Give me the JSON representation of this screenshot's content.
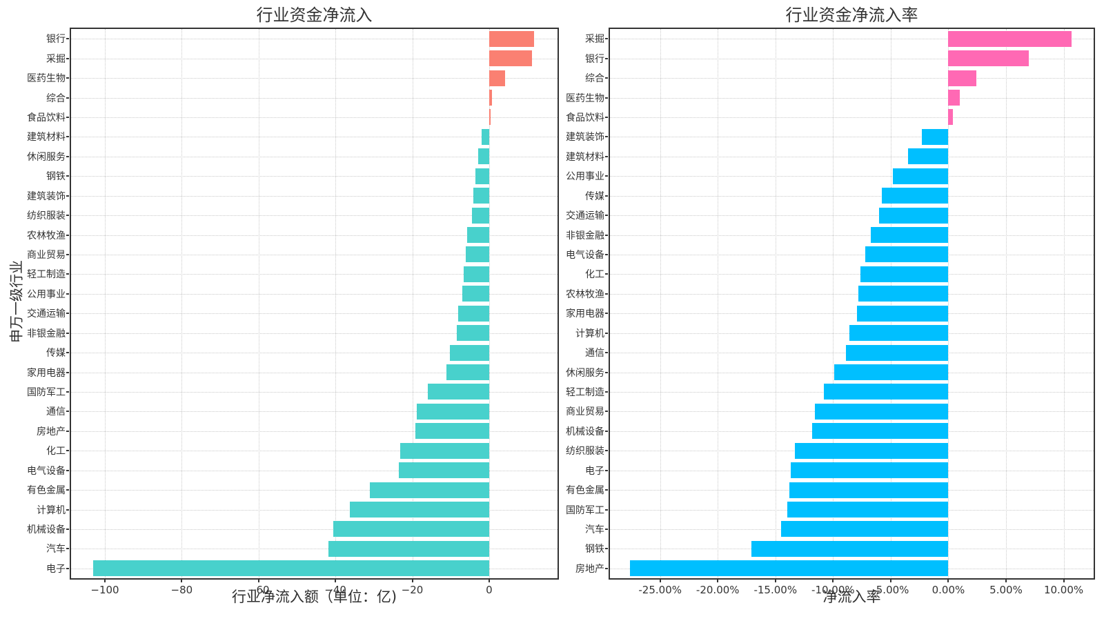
{
  "chart_data": [
    {
      "type": "bar",
      "orientation": "horizontal",
      "title": "行业资金净流入",
      "xlabel": "行业净流入额（单位：亿)",
      "ylabel": "申万一级行业",
      "unit": "亿",
      "grid": true,
      "legend": "none",
      "bar_colors": {
        "positive": "#FA8072",
        "negative": "#48D1CC"
      },
      "xlim": [
        -108.8,
        17.8
      ],
      "xticks": [
        {
          "value": -100,
          "label": "−100"
        },
        {
          "value": -80,
          "label": "−80"
        },
        {
          "value": -60,
          "label": "−60"
        },
        {
          "value": -40,
          "label": "−40"
        },
        {
          "value": -20,
          "label": "−20"
        },
        {
          "value": 0,
          "label": "0"
        }
      ],
      "categories": [
        "银行",
        "采掘",
        "医药生物",
        "综合",
        "食品饮料",
        "建筑材料",
        "休闲服务",
        "钢铁",
        "建筑装饰",
        "纺织服装",
        "农林牧渔",
        "商业贸易",
        "轻工制造",
        "公用事业",
        "交通运输",
        "非银金融",
        "传媒",
        "家用电器",
        "国防军工",
        "通信",
        "房地产",
        "化工",
        "电气设备",
        "有色金属",
        "计算机",
        "机械设备",
        "汽车",
        "电子"
      ],
      "values": [
        11.7,
        11.2,
        4.1,
        0.8,
        0.4,
        -2.0,
        -2.9,
        -3.5,
        -4.1,
        -4.4,
        -5.8,
        -6.0,
        -6.6,
        -6.9,
        -8.1,
        -8.5,
        -10.3,
        -11.2,
        -16.0,
        -18.8,
        -19.2,
        -23.2,
        -23.5,
        -31.0,
        -36.2,
        -40.6,
        -41.9,
        -103.0
      ]
    },
    {
      "type": "bar",
      "orientation": "horizontal",
      "title": "行业资金净流入率",
      "xlabel": "净流入率",
      "ylabel": "",
      "unit": "%",
      "grid": true,
      "legend": "none",
      "bar_colors": {
        "positive": "#FF69B4",
        "negative": "#00BFFF"
      },
      "xlim": [
        -29.35,
        12.6
      ],
      "xticks": [
        {
          "value": -25,
          "label": "-25.00%"
        },
        {
          "value": -20,
          "label": "-20.00%"
        },
        {
          "value": -15,
          "label": "-15.00%"
        },
        {
          "value": -10,
          "label": "-10.00%"
        },
        {
          "value": -5,
          "label": "-5.00%"
        },
        {
          "value": 0,
          "label": "0.00%"
        },
        {
          "value": 5,
          "label": "5.00%"
        },
        {
          "value": 10,
          "label": "10.00%"
        }
      ],
      "categories": [
        "采掘",
        "银行",
        "综合",
        "医药生物",
        "食品饮料",
        "建筑装饰",
        "建筑材料",
        "公用事业",
        "传媒",
        "交通运输",
        "非银金融",
        "电气设备",
        "化工",
        "农林牧渔",
        "家用电器",
        "计算机",
        "通信",
        "休闲服务",
        "轻工制造",
        "商业贸易",
        "机械设备",
        "纺织服装",
        "电子",
        "有色金属",
        "国防军工",
        "汽车",
        "钢铁",
        "房地产"
      ],
      "values": [
        10.7,
        7.0,
        2.4,
        1.0,
        0.4,
        -2.3,
        -3.5,
        -4.8,
        -5.8,
        -6.0,
        -6.7,
        -7.2,
        -7.6,
        -7.8,
        -7.9,
        -8.6,
        -8.9,
        -9.9,
        -10.8,
        -11.6,
        -11.8,
        -13.3,
        -13.7,
        -13.8,
        -14.0,
        -14.5,
        -17.1,
        -27.6
      ]
    }
  ]
}
